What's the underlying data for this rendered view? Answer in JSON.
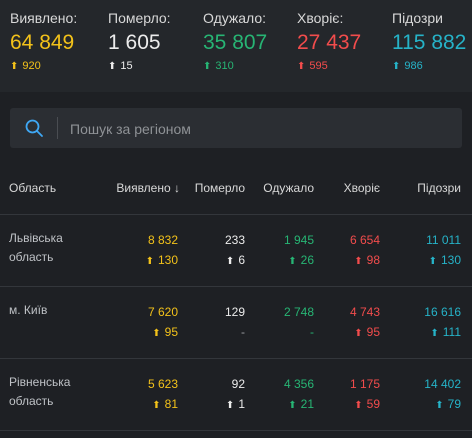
{
  "colors": {
    "confirmed": "#f3c21a",
    "deaths": "#ececec",
    "recovered": "#27b574",
    "sick": "#f24c4c",
    "suspected": "#26b3c8",
    "background": "#1e2024"
  },
  "stats": [
    {
      "label": "Виявлено:",
      "value": "64 849",
      "delta": "920"
    },
    {
      "label": "Померло:",
      "value": "1 605",
      "delta": "15"
    },
    {
      "label": "Одужало:",
      "value": "35 807",
      "delta": "310"
    },
    {
      "label": "Хворіє:",
      "value": "27 437",
      "delta": "595"
    },
    {
      "label": "Підозри",
      "value": "115 882",
      "delta": "986"
    }
  ],
  "search": {
    "placeholder": "Пошук за регіоном",
    "icon": "search-icon"
  },
  "table": {
    "headers": {
      "region": "Область",
      "confirmed": "Виявлено",
      "confirmed_sort_icon": "↓",
      "deaths": "Померло",
      "recovered": "Одужало",
      "sick": "Хворіє",
      "suspected": "Підозри"
    },
    "rows": [
      {
        "region": [
          "Львівська",
          "область"
        ],
        "confirmed": "8 832",
        "confirmed_delta": "130",
        "deaths": "233",
        "deaths_delta": "6",
        "recovered": "1 945",
        "recovered_delta": "26",
        "sick": "6 654",
        "sick_delta": "98",
        "suspected": "11 011",
        "suspected_delta": "130"
      },
      {
        "region": [
          "м. Київ"
        ],
        "confirmed": "7 620",
        "confirmed_delta": "95",
        "deaths": "129",
        "deaths_delta": "-",
        "recovered": "2 748",
        "recovered_delta": "-",
        "sick": "4 743",
        "sick_delta": "95",
        "suspected": "16 616",
        "suspected_delta": "111"
      },
      {
        "region": [
          "Рівненська",
          "область"
        ],
        "confirmed": "5 623",
        "confirmed_delta": "81",
        "deaths": "92",
        "deaths_delta": "1",
        "recovered": "4 356",
        "recovered_delta": "21",
        "sick": "1 175",
        "sick_delta": "59",
        "suspected": "14 402",
        "suspected_delta": "79"
      }
    ]
  }
}
